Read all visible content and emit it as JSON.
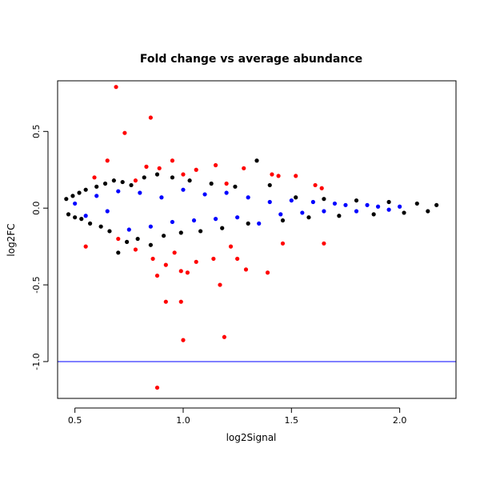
{
  "chart_data": {
    "type": "scatter",
    "title": "Fold change vs average abundance",
    "xlabel": "log2Signal",
    "ylabel": "log2FC",
    "xlim": [
      0.42,
      2.26
    ],
    "ylim": [
      -1.24,
      0.83
    ],
    "x_ticks": [
      0.5,
      1.0,
      1.5,
      2.0
    ],
    "x_tick_labels": [
      "0.5",
      "1.0",
      "1.5",
      "2.0"
    ],
    "y_ticks": [
      -1.0,
      -0.5,
      0.0,
      0.5
    ],
    "y_tick_labels": [
      "-1.0",
      "-0.5",
      "0.0",
      "0.5"
    ],
    "grid": false,
    "legend": "none",
    "reference_lines": [
      {
        "type": "horizontal",
        "y": -1.0,
        "color": "#0000ff"
      }
    ],
    "colors": {
      "black": "#000000",
      "blue": "#0000ff",
      "red": "#ff0000"
    },
    "series": [
      {
        "color": "black",
        "points": [
          [
            0.46,
            0.06
          ],
          [
            0.47,
            -0.04
          ],
          [
            0.49,
            0.08
          ],
          [
            0.5,
            -0.06
          ],
          [
            0.52,
            0.1
          ],
          [
            0.53,
            -0.07
          ],
          [
            0.55,
            0.12
          ],
          [
            0.57,
            -0.1
          ],
          [
            0.6,
            0.14
          ],
          [
            0.62,
            -0.12
          ],
          [
            0.64,
            0.16
          ],
          [
            0.66,
            -0.15
          ],
          [
            0.68,
            0.18
          ],
          [
            0.7,
            -0.29
          ],
          [
            0.72,
            0.17
          ],
          [
            0.74,
            -0.22
          ],
          [
            0.76,
            0.15
          ],
          [
            0.79,
            -0.2
          ],
          [
            0.82,
            0.2
          ],
          [
            0.85,
            -0.24
          ],
          [
            0.88,
            0.22
          ],
          [
            0.91,
            -0.18
          ],
          [
            0.95,
            0.2
          ],
          [
            0.99,
            -0.16
          ],
          [
            1.03,
            0.18
          ],
          [
            1.08,
            -0.15
          ],
          [
            1.13,
            0.16
          ],
          [
            1.18,
            -0.13
          ],
          [
            1.24,
            0.14
          ],
          [
            1.3,
            -0.1
          ],
          [
            1.34,
            0.31
          ],
          [
            1.4,
            0.15
          ],
          [
            1.46,
            -0.08
          ],
          [
            1.52,
            0.07
          ],
          [
            1.58,
            -0.06
          ],
          [
            1.65,
            0.06
          ],
          [
            1.72,
            -0.05
          ],
          [
            1.8,
            0.05
          ],
          [
            1.88,
            -0.04
          ],
          [
            1.95,
            0.04
          ],
          [
            2.02,
            -0.03
          ],
          [
            2.08,
            0.03
          ],
          [
            2.13,
            -0.02
          ],
          [
            2.17,
            0.02
          ]
        ]
      },
      {
        "color": "blue",
        "points": [
          [
            0.5,
            0.03
          ],
          [
            0.55,
            -0.05
          ],
          [
            0.6,
            0.08
          ],
          [
            0.65,
            -0.02
          ],
          [
            0.7,
            0.11
          ],
          [
            0.75,
            -0.14
          ],
          [
            0.8,
            0.1
          ],
          [
            0.85,
            -0.12
          ],
          [
            0.9,
            0.07
          ],
          [
            0.95,
            -0.09
          ],
          [
            1.0,
            0.12
          ],
          [
            1.05,
            -0.08
          ],
          [
            1.1,
            0.09
          ],
          [
            1.15,
            -0.07
          ],
          [
            1.2,
            0.1
          ],
          [
            1.25,
            -0.06
          ],
          [
            1.3,
            0.07
          ],
          [
            1.35,
            -0.1
          ],
          [
            1.4,
            0.04
          ],
          [
            1.45,
            -0.04
          ],
          [
            1.5,
            0.05
          ],
          [
            1.55,
            -0.03
          ],
          [
            1.6,
            0.04
          ],
          [
            1.65,
            -0.02
          ],
          [
            1.7,
            0.03
          ],
          [
            1.75,
            0.02
          ],
          [
            1.8,
            -0.02
          ],
          [
            1.85,
            0.02
          ],
          [
            1.9,
            0.01
          ],
          [
            1.95,
            -0.01
          ],
          [
            2.0,
            0.01
          ]
        ]
      },
      {
        "color": "red",
        "points": [
          [
            0.69,
            0.79
          ],
          [
            0.73,
            0.49
          ],
          [
            0.85,
            0.59
          ],
          [
            0.65,
            0.31
          ],
          [
            0.83,
            0.27
          ],
          [
            0.89,
            0.26
          ],
          [
            0.95,
            0.31
          ],
          [
            1.06,
            0.25
          ],
          [
            1.15,
            0.28
          ],
          [
            1.28,
            0.26
          ],
          [
            1.41,
            0.22
          ],
          [
            1.44,
            0.21
          ],
          [
            1.52,
            0.21
          ],
          [
            1.61,
            0.15
          ],
          [
            1.64,
            0.13
          ],
          [
            0.59,
            0.2
          ],
          [
            0.78,
            0.18
          ],
          [
            1.0,
            0.22
          ],
          [
            1.2,
            0.16
          ],
          [
            0.55,
            -0.25
          ],
          [
            0.7,
            -0.2
          ],
          [
            0.78,
            -0.27
          ],
          [
            0.86,
            -0.33
          ],
          [
            0.88,
            -0.44
          ],
          [
            0.92,
            -0.37
          ],
          [
            0.92,
            -0.61
          ],
          [
            0.99,
            -0.61
          ],
          [
            0.99,
            -0.41
          ],
          [
            1.02,
            -0.42
          ],
          [
            1.06,
            -0.35
          ],
          [
            1.14,
            -0.33
          ],
          [
            1.17,
            -0.5
          ],
          [
            1.19,
            -0.84
          ],
          [
            1.25,
            -0.33
          ],
          [
            1.29,
            -0.4
          ],
          [
            1.39,
            -0.42
          ],
          [
            1.46,
            -0.23
          ],
          [
            1.65,
            -0.23
          ],
          [
            0.88,
            -1.17
          ],
          [
            1.0,
            -0.86
          ],
          [
            1.22,
            -0.25
          ],
          [
            0.96,
            -0.29
          ]
        ]
      }
    ]
  }
}
